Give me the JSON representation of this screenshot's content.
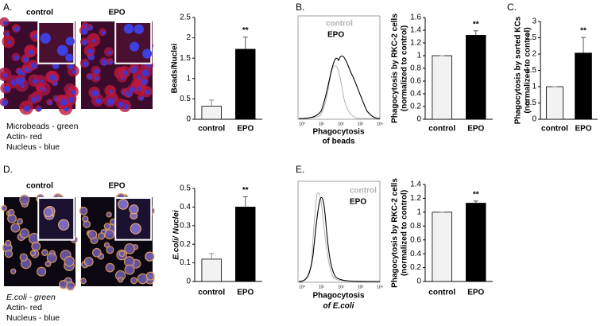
{
  "panels": {
    "A": {
      "label": "A.",
      "image_titles": [
        "control",
        "EPO"
      ],
      "caption": [
        "Microbeads - green",
        "Actin- red",
        "Nucleus - blue"
      ]
    },
    "B": {
      "label": "B.",
      "flow_legend": [
        "control",
        "EPO"
      ],
      "flow_xticks": [
        "10⁰",
        "10¹",
        "10²",
        "10³",
        "10⁴"
      ],
      "flow_xlabel": [
        "Phagocytosis",
        "of beads"
      ]
    },
    "C": {
      "label": "C."
    },
    "D": {
      "label": "D.",
      "image_titles": [
        "control",
        "EPO"
      ],
      "caption": [
        "E.coli - green",
        "Actin- red",
        "Nucleus - blue"
      ]
    },
    "E": {
      "label": "E.",
      "flow_legend": [
        "control",
        "EPO"
      ],
      "flow_xticks": [
        "10⁰",
        "10¹",
        "10²",
        "10³",
        "10⁴"
      ],
      "flow_xlabel": [
        "Phagocytosis",
        "of E.coli"
      ]
    }
  },
  "chart_data": [
    {
      "type": "bar",
      "ylabel": [
        "Beads/Nuclei"
      ],
      "categories": [
        "control",
        "EPO"
      ],
      "values": [
        0.32,
        1.72
      ],
      "errors": [
        0.15,
        0.3
      ],
      "colors": [
        "#f2f2f2",
        "#000000"
      ],
      "ylim": [
        0,
        2.5
      ],
      "yticks": [
        0,
        0.5,
        1,
        1.5,
        2,
        2.5
      ],
      "significance": "**"
    },
    {
      "type": "bar",
      "ylabel": [
        "Phagocytosis by RKC-2 cells",
        "(normalized to control)"
      ],
      "categories": [
        "control",
        "EPO"
      ],
      "values": [
        1,
        1.32
      ],
      "errors": [
        0,
        0.07
      ],
      "colors": [
        "#f2f2f2",
        "#000000"
      ],
      "ylim": [
        0,
        1.6
      ],
      "yticks": [
        0,
        0.2,
        0.4,
        0.6,
        0.8,
        1,
        1.2,
        1.4,
        1.6
      ],
      "significance": "**"
    },
    {
      "type": "bar",
      "ylabel": [
        "Phagocytosis by sorted KCs",
        "(normalized to control)"
      ],
      "categories": [
        "control",
        "EPO"
      ],
      "values": [
        1,
        2.03
      ],
      "errors": [
        0,
        0.48
      ],
      "colors": [
        "#f2f2f2",
        "#000000"
      ],
      "ylim": [
        0,
        3
      ],
      "yticks": [
        0,
        0.5,
        1,
        1.5,
        2,
        2.5,
        3
      ],
      "significance": "**"
    },
    {
      "type": "bar",
      "ylabel": [
        "E.coli/ Nuclei"
      ],
      "categories": [
        "control",
        "EPO"
      ],
      "values": [
        0.12,
        0.4
      ],
      "errors": [
        0.03,
        0.055
      ],
      "colors": [
        "#f2f2f2",
        "#000000"
      ],
      "ylim": [
        0,
        0.5
      ],
      "yticks": [
        0,
        0.1,
        0.2,
        0.3,
        0.4,
        0.5
      ],
      "significance": "**"
    },
    {
      "type": "bar",
      "ylabel": [
        "Phagocytosis by RKC-2 cells",
        "(normalized to control)"
      ],
      "categories": [
        "control",
        "EPO"
      ],
      "values": [
        1,
        1.13
      ],
      "errors": [
        0,
        0.03
      ],
      "colors": [
        "#f2f2f2",
        "#000000"
      ],
      "ylim": [
        0,
        1.4
      ],
      "yticks": [
        0,
        0.2,
        0.4,
        0.6,
        0.8,
        1,
        1.2,
        1.4
      ],
      "significance": "**"
    }
  ]
}
